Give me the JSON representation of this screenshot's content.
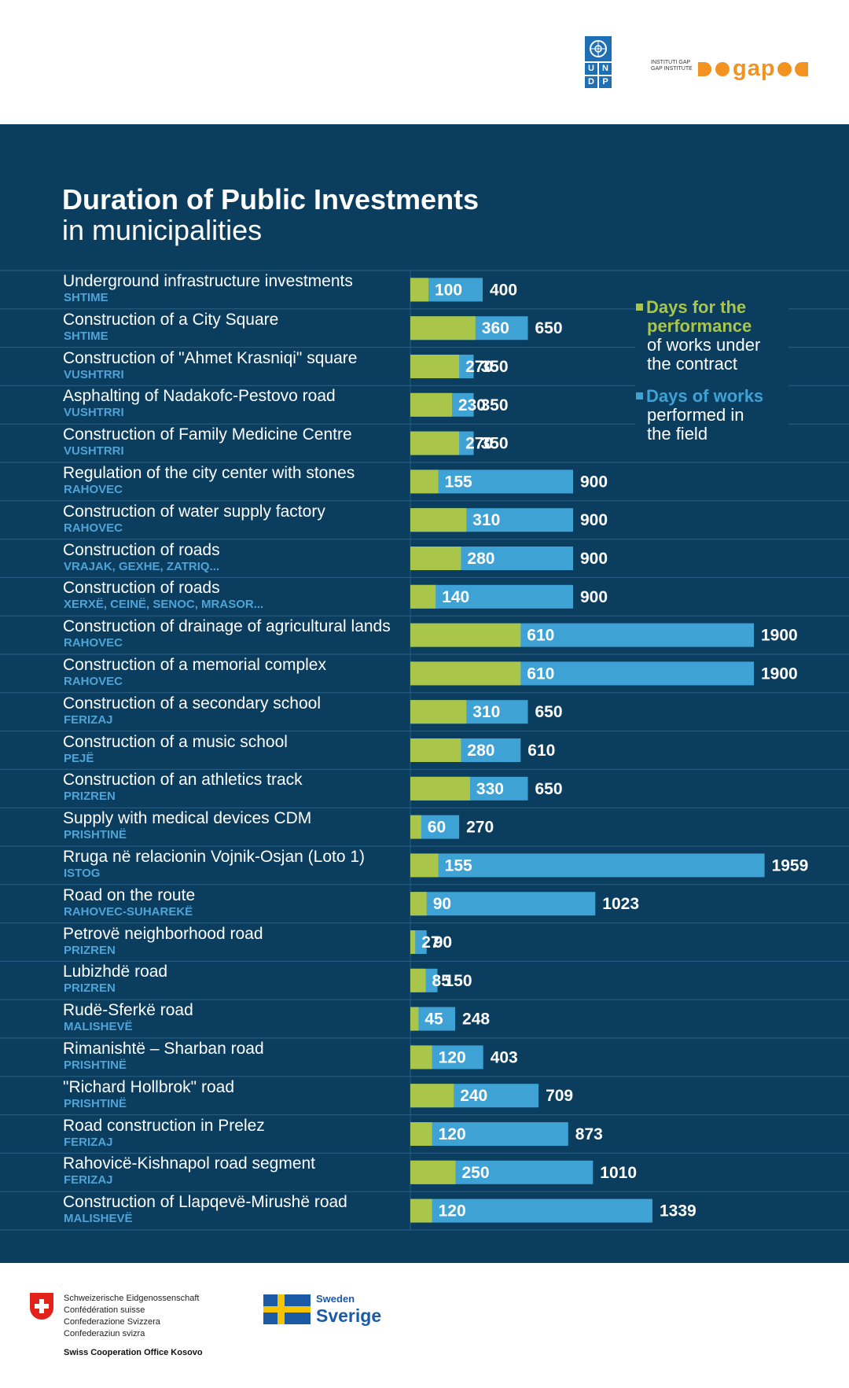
{
  "colors": {
    "background": "#0b3d5f",
    "green": "#a9c54a",
    "blue": "#3fa2d4",
    "sublabel": "#4fa3d6",
    "divider": "#2a5f84"
  },
  "header": {
    "undp_letters": [
      "U",
      "N",
      "D",
      "P"
    ],
    "gap_small_line1": "INSTITUTI GAP",
    "gap_small_line2": "GAP INSTITUTE",
    "gap_wordmark": "gap"
  },
  "title": "Duration of Public Investments",
  "subtitle": "in municipalities",
  "legend": {
    "green": {
      "highlight_line1": "Days for the",
      "highlight_line2": "performance",
      "rest_line1": "of works under",
      "rest_line2": "the contract"
    },
    "blue": {
      "highlight_line1": "Days of works",
      "rest_line1": "performed in",
      "rest_line2": "the field"
    }
  },
  "chart_data": {
    "type": "bar",
    "orientation": "horizontal",
    "layout": "overlapping",
    "series": [
      {
        "name": "Days for the performance of works under the contract",
        "color": "#a9c54a"
      },
      {
        "name": "Days of works performed in the field",
        "color": "#3fa2d4"
      }
    ],
    "rows": [
      {
        "project": "Underground infrastructure investments",
        "municipality": "SHTIME",
        "contract_days": 100,
        "field_days": 400
      },
      {
        "project": "Construction of a City Square",
        "municipality": "SHTIME",
        "contract_days": 360,
        "field_days": 650
      },
      {
        "project": "Construction of \"Ahmet Krasniqi\" square",
        "municipality": "VUSHTRRI",
        "contract_days": 270,
        "field_days": 350
      },
      {
        "project": "Asphalting of Nadakofc-Pestovo road",
        "municipality": "VUSHTRRI",
        "contract_days": 230,
        "field_days": 350
      },
      {
        "project": "Construction of Family Medicine Centre",
        "municipality": "VUSHTRRI",
        "contract_days": 270,
        "field_days": 350
      },
      {
        "project": "Regulation of the city center with stones",
        "municipality": "RAHOVEC",
        "contract_days": 155,
        "field_days": 900
      },
      {
        "project": "Construction of water supply factory",
        "municipality": "RAHOVEC",
        "contract_days": 310,
        "field_days": 900
      },
      {
        "project": "Construction of roads",
        "municipality": "VRAJAK, GEXHE, ZATRIQ...",
        "contract_days": 280,
        "field_days": 900
      },
      {
        "project": "Construction of roads",
        "municipality": "XERXË, CEINË, SENOC, MRASOR...",
        "contract_days": 140,
        "field_days": 900
      },
      {
        "project": "Construction of drainage of agricultural lands",
        "municipality": "RAHOVEC",
        "contract_days": 610,
        "field_days": 1900
      },
      {
        "project": "Construction of a memorial complex",
        "municipality": "RAHOVEC",
        "contract_days": 610,
        "field_days": 1900
      },
      {
        "project": "Construction of a secondary school",
        "municipality": "FERIZAJ",
        "contract_days": 310,
        "field_days": 650
      },
      {
        "project": "Construction of a music school",
        "municipality": "PEJË",
        "contract_days": 280,
        "field_days": 610
      },
      {
        "project": "Construction of an athletics track",
        "municipality": "PRIZREN",
        "contract_days": 330,
        "field_days": 650
      },
      {
        "project": "Supply with medical devices CDM",
        "municipality": "PRISHTINË",
        "contract_days": 60,
        "field_days": 270
      },
      {
        "project": "Rruga në relacionin Vojnik-Osjan (Loto 1)",
        "municipality": "ISTOG",
        "contract_days": 155,
        "field_days": 1959
      },
      {
        "project": "Road on the route",
        "municipality": "RAHOVEC-SUHAREKË",
        "contract_days": 90,
        "field_days": 1023
      },
      {
        "project": "Petrovë neighborhood road",
        "municipality": "PRIZREN",
        "contract_days": 27,
        "field_days": 90
      },
      {
        "project": "Lubizhdë road",
        "municipality": "PRIZREN",
        "contract_days": 85,
        "field_days": 150
      },
      {
        "project": "Rudë-Sferkë road",
        "municipality": "MALISHEVË",
        "contract_days": 45,
        "field_days": 248
      },
      {
        "project": "Rimanishtë – Sharban road",
        "municipality": "PRISHTINË",
        "contract_days": 120,
        "field_days": 403
      },
      {
        "project": "\"Richard Hollbrok\" road",
        "municipality": "PRISHTINË",
        "contract_days": 240,
        "field_days": 709
      },
      {
        "project": "Road construction in Prelez",
        "municipality": "FERIZAJ",
        "contract_days": 120,
        "field_days": 873
      },
      {
        "project": "Rahovicë-Kishnapol road segment",
        "municipality": "FERIZAJ",
        "contract_days": 250,
        "field_days": 1010
      },
      {
        "project": "Construction of Llapqevë-Mirushë road",
        "municipality": "MALISHEVË",
        "contract_days": 120,
        "field_days": 1339
      }
    ]
  },
  "footer": {
    "swiss_lines": [
      "Schweizerische Eidgenossenschaft",
      "Confédération suisse",
      "Confederazione Svizzera",
      "Confederaziun svizra"
    ],
    "swiss_office": "Swiss Cooperation Office Kosovo",
    "sweden_small": "Sweden",
    "sweden_big": "Sverige"
  }
}
